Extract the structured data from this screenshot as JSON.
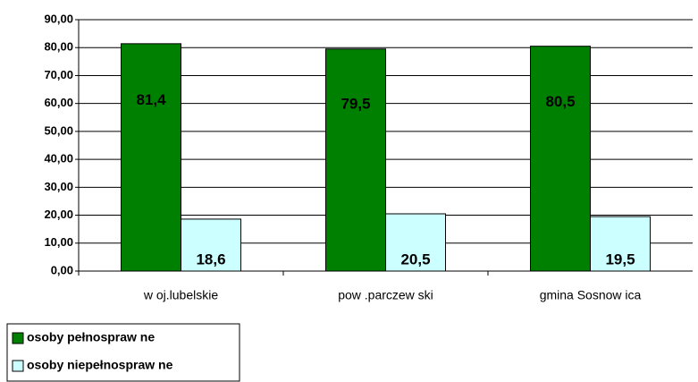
{
  "chart_data": {
    "type": "bar",
    "categories": [
      "w oj.lubelskie",
      "pow .parczew ski",
      "gmina Sosnow ica"
    ],
    "series": [
      {
        "name": "osoby pełnospraw ne",
        "color": "#008000",
        "values": [
          81.4,
          79.5,
          80.5
        ],
        "value_labels": [
          "81,4",
          "79,5",
          "80,5"
        ]
      },
      {
        "name": "osoby niepełnospraw ne",
        "color": "#ccffff",
        "values": [
          18.6,
          20.5,
          19.5
        ],
        "value_labels": [
          "18,6",
          "20,5",
          "19,5"
        ]
      }
    ],
    "ylim": [
      0,
      90
    ],
    "yticks": [
      {
        "value": 0,
        "label": "0,00"
      },
      {
        "value": 10,
        "label": "10,00"
      },
      {
        "value": 20,
        "label": "20,00"
      },
      {
        "value": 30,
        "label": "30,00"
      },
      {
        "value": 40,
        "label": "40,00"
      },
      {
        "value": 50,
        "label": "50,00"
      },
      {
        "value": 60,
        "label": "60,00"
      },
      {
        "value": 70,
        "label": "70,00"
      },
      {
        "value": 80,
        "label": "80,00"
      },
      {
        "value": 90,
        "label": "90,00"
      }
    ],
    "grid": true,
    "legend": "bottom-left"
  }
}
